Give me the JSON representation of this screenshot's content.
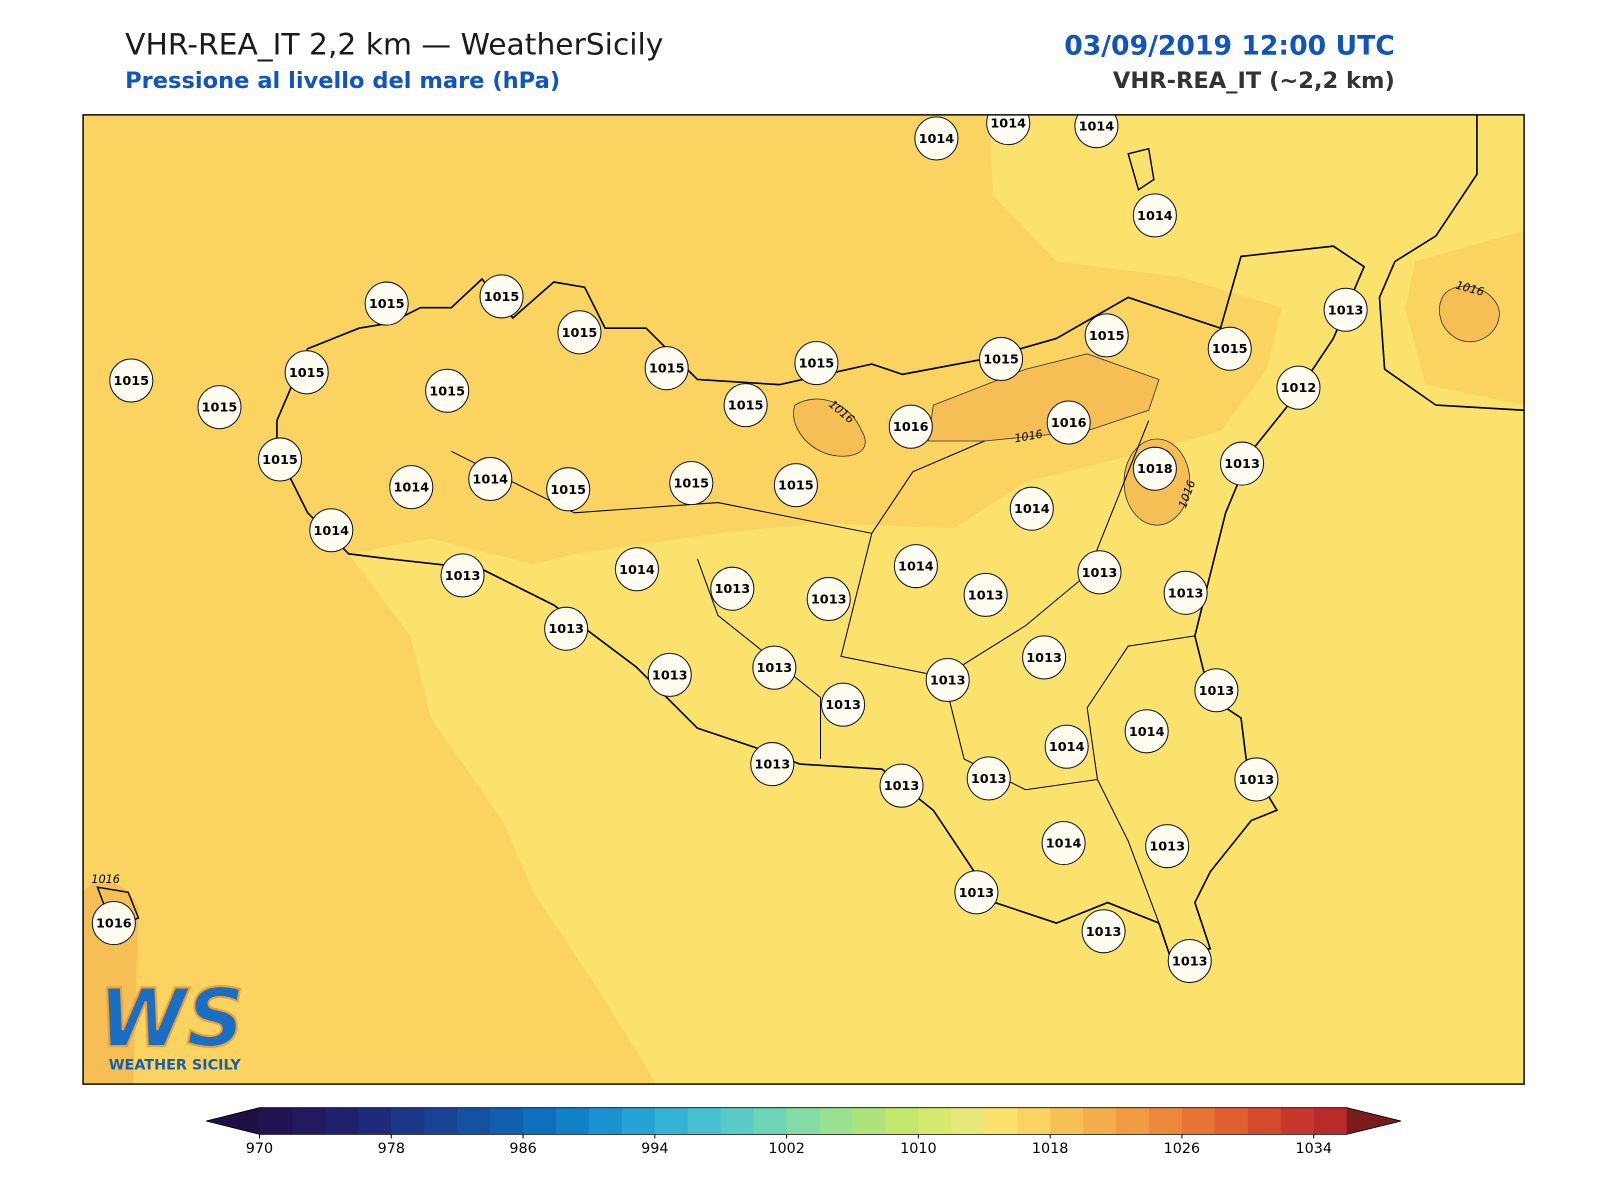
{
  "header": {
    "title": "VHR-REA_IT 2,2 km — WeatherSicily",
    "subtitle": "Pressione al livello del mare (hPa)",
    "datetime": "03/09/2019 12:00 UTC",
    "model": "VHR-REA_IT (~2,2 km)"
  },
  "stations": [
    1014,
    1014,
    1014,
    1014,
    1015,
    1015,
    1015,
    1015,
    1015,
    1015,
    1015,
    1015,
    1013,
    1015,
    1015,
    1015,
    1015,
    1015,
    1016,
    1016,
    1012,
    1015,
    1014,
    1014,
    1015,
    1015,
    1015,
    1018,
    1013,
    1014,
    1014,
    1013,
    1014,
    1013,
    1013,
    1014,
    1013,
    1013,
    1013,
    1013,
    1013,
    1013,
    1013,
    1013,
    1013,
    1013,
    1014,
    1014,
    1013,
    1013,
    1013,
    1013,
    1014,
    1013,
    1013,
    1013,
    1013,
    1016
  ],
  "contour_labels": [
    1016,
    1016,
    1016,
    1016,
    1016
  ],
  "colorbar": {
    "lim": [
      970,
      1036
    ],
    "ticks": [
      970,
      978,
      986,
      994,
      1002,
      1010,
      1018,
      1026,
      1034
    ],
    "colors": [
      "#221452",
      "#22195f",
      "#20216c",
      "#1f2a7a",
      "#1c3688",
      "#194395",
      "#1551a3",
      "#1160b0",
      "#0d70bd",
      "#1181c7",
      "#1a92cf",
      "#25a3d4",
      "#36b3d4",
      "#47c0d0",
      "#58cbc6",
      "#6dd5b6",
      "#84dba3",
      "#99e08f",
      "#aee37c",
      "#c3e66d",
      "#d6e86e",
      "#e6e877",
      "#fbe26c",
      "#fad361",
      "#f6c055",
      "#f3ad4b",
      "#f09a42",
      "#ec873b",
      "#e77334",
      "#e05f30",
      "#d64a2e",
      "#c8372c",
      "#b82b2a"
    ],
    "under": "#1e0f45",
    "over": "#7a1c1c"
  },
  "logo": {
    "mark": "WS",
    "name": "WEATHER SICILY"
  }
}
